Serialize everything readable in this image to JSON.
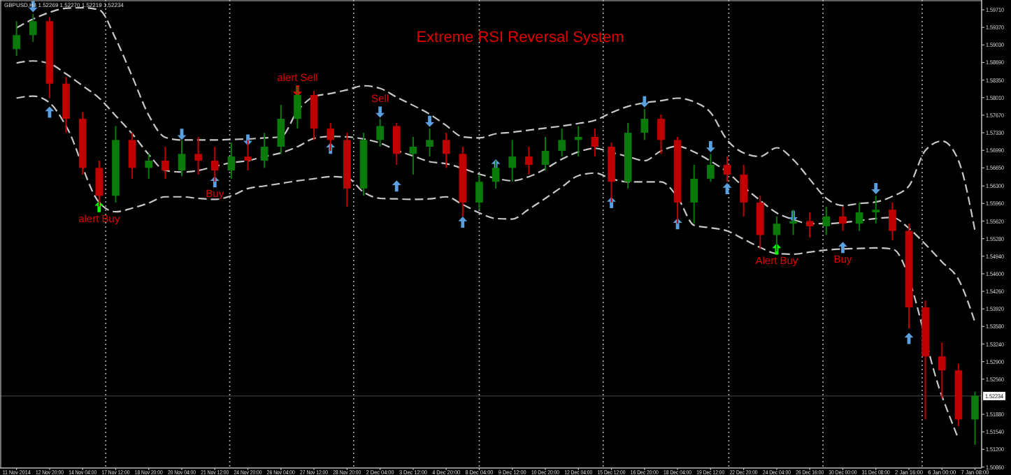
{
  "chart_data": {
    "type": "candlestick",
    "title": "Extreme RSI Reversal System",
    "subtitle": "GBPUSD,H4  1.52269 1.52270 1.52219 1.52234",
    "categories": [
      "11 Nov 2014",
      null,
      "12 Nov 20:00",
      null,
      "14 Nov 04:00",
      null,
      "17 Nov 12:00",
      null,
      "18 Nov 20:00",
      null,
      "20 Nov 04:00",
      null,
      "21 Nov 12:00",
      null,
      "24 Nov 20:00",
      null,
      "26 Nov 04:00",
      null,
      "27 Nov 12:00",
      null,
      "28 Nov 20:00",
      null,
      "2 Dec 04:00",
      null,
      "3 Dec 12:00",
      null,
      "4 Dec 20:00",
      null,
      "8 Dec 04:00",
      null,
      "9 Dec 12:00",
      null,
      "10 Dec 20:00",
      null,
      "12 Dec 04:00",
      null,
      "15 Dec 12:00",
      null,
      "16 Dec 20:00",
      null,
      "18 Dec 04:00",
      null,
      "19 Dec 12:00",
      null,
      "22 Dec 20:00",
      null,
      "24 Dec 04:00",
      null,
      "26 Dec 16:00",
      null,
      "30 Dec 00:00",
      null,
      "31 Dec 08:00",
      null,
      "2 Jan 16:00",
      null,
      "6 Jan 00:00",
      null,
      "7 Jan 08:00"
    ],
    "ohlc": [
      [
        1.5895,
        1.5949,
        1.5882,
        1.5922
      ],
      [
        1.5922,
        1.5963,
        1.5909,
        1.5949
      ],
      [
        1.5949,
        1.5957,
        1.58,
        1.5828
      ],
      [
        1.5828,
        1.5841,
        1.5733,
        1.576
      ],
      [
        1.576,
        1.5773,
        1.5652,
        1.5665
      ],
      [
        1.5665,
        1.5679,
        1.559,
        1.5611
      ],
      [
        1.5611,
        1.5746,
        1.5598,
        1.5719
      ],
      [
        1.5719,
        1.5733,
        1.5644,
        1.5665
      ],
      [
        1.5665,
        1.5692,
        1.5644,
        1.5679
      ],
      [
        1.5679,
        1.5706,
        1.5644,
        1.566
      ],
      [
        1.566,
        1.5719,
        1.5649,
        1.5692
      ],
      [
        1.5692,
        1.5725,
        1.5652,
        1.5679
      ],
      [
        1.5679,
        1.5706,
        1.5638,
        1.566
      ],
      [
        1.566,
        1.5714,
        1.5644,
        1.5687
      ],
      [
        1.5687,
        1.5719,
        1.566,
        1.5679
      ],
      [
        1.5679,
        1.5733,
        1.5665,
        1.5706
      ],
      [
        1.5706,
        1.5787,
        1.5692,
        1.576
      ],
      [
        1.576,
        1.5822,
        1.5741,
        1.5806
      ],
      [
        1.5806,
        1.5814,
        1.5719,
        1.5741
      ],
      [
        1.5741,
        1.5752,
        1.5698,
        1.5719
      ],
      [
        1.5719,
        1.5733,
        1.559,
        1.5625
      ],
      [
        1.5625,
        1.5733,
        1.5611,
        1.5719
      ],
      [
        1.5719,
        1.576,
        1.5706,
        1.5746
      ],
      [
        1.5746,
        1.5752,
        1.5671,
        1.5692
      ],
      [
        1.5692,
        1.5725,
        1.5652,
        1.5706
      ],
      [
        1.5706,
        1.5741,
        1.5687,
        1.5719
      ],
      [
        1.5719,
        1.5733,
        1.5665,
        1.5692
      ],
      [
        1.5692,
        1.5706,
        1.5571,
        1.5598
      ],
      [
        1.5598,
        1.5652,
        1.5584,
        1.5638
      ],
      [
        1.5638,
        1.5679,
        1.5625,
        1.5665
      ],
      [
        1.5665,
        1.5719,
        1.5638,
        1.5687
      ],
      [
        1.5687,
        1.5706,
        1.5652,
        1.5671
      ],
      [
        1.5671,
        1.5725,
        1.566,
        1.5698
      ],
      [
        1.5698,
        1.5741,
        1.5687,
        1.5719
      ],
      [
        1.5719,
        1.5746,
        1.5687,
        1.5725
      ],
      [
        1.5725,
        1.5741,
        1.5687,
        1.5706
      ],
      [
        1.5706,
        1.5714,
        1.5598,
        1.5638
      ],
      [
        1.5638,
        1.5752,
        1.5625,
        1.5733
      ],
      [
        1.5733,
        1.5779,
        1.5719,
        1.576
      ],
      [
        1.576,
        1.5768,
        1.5692,
        1.5719
      ],
      [
        1.5719,
        1.5725,
        1.5557,
        1.5598
      ],
      [
        1.5598,
        1.5671,
        1.5557,
        1.5644
      ],
      [
        1.5644,
        1.5692,
        1.5638,
        1.5671
      ],
      [
        1.5671,
        1.5687,
        1.5638,
        1.5652
      ],
      [
        1.5652,
        1.5671,
        1.5571,
        1.5598
      ],
      [
        1.5598,
        1.5611,
        1.5508,
        1.5535
      ],
      [
        1.5535,
        1.5571,
        1.5503,
        1.5557
      ],
      [
        1.5557,
        1.5584,
        1.5535,
        1.5562
      ],
      [
        1.5562,
        1.5579,
        1.553,
        1.5552
      ],
      [
        1.5552,
        1.559,
        1.5535,
        1.5571
      ],
      [
        1.5571,
        1.559,
        1.5543,
        1.5557
      ],
      [
        1.5557,
        1.5598,
        1.5543,
        1.5579
      ],
      [
        1.5579,
        1.5611,
        1.5557,
        1.5584
      ],
      [
        1.5584,
        1.5598,
        1.5525,
        1.5543
      ],
      [
        1.5543,
        1.5557,
        1.5354,
        1.5395
      ],
      [
        1.5395,
        1.5408,
        1.5178,
        1.53
      ],
      [
        1.53,
        1.5327,
        1.5219,
        1.5273
      ],
      [
        1.5273,
        1.5286,
        1.5165,
        1.5178
      ],
      [
        1.5178,
        1.5232,
        1.5129,
        1.5224
      ]
    ],
    "series": [
      {
        "type": "line",
        "color": "#c8c8c8",
        "line_style": "dashed",
        "values": [
          1.5936,
          1.5953,
          1.5966,
          1.5974,
          1.5975,
          1.5971,
          1.5915,
          1.5842,
          1.5767,
          1.5724,
          1.5719,
          1.5719,
          1.5719,
          1.572,
          1.5721,
          1.5723,
          1.5725,
          1.5775,
          1.5803,
          1.5809,
          1.5816,
          1.5824,
          1.5819,
          1.5802,
          1.5786,
          1.5769,
          1.5747,
          1.5725,
          1.5723,
          1.5731,
          1.5734,
          1.5738,
          1.5742,
          1.5746,
          1.5751,
          1.5757,
          1.5772,
          1.5784,
          1.5791,
          1.5795,
          1.58,
          1.5793,
          1.5772,
          1.5719,
          1.5694,
          1.5687,
          1.5704,
          1.5681,
          1.5643,
          1.5606,
          1.5592,
          1.5596,
          1.5599,
          1.561,
          1.563,
          1.5699,
          1.5717,
          1.5679,
          1.5543
        ]
      },
      {
        "type": "line",
        "color": "#c8c8c8",
        "line_style": "dashed",
        "values": [
          1.5868,
          1.5872,
          1.5867,
          1.5847,
          1.5824,
          1.58,
          1.5766,
          1.5731,
          1.5691,
          1.566,
          1.5657,
          1.566,
          1.5668,
          1.5675,
          1.5679,
          1.5687,
          1.5694,
          1.5706,
          1.5722,
          1.5726,
          1.5725,
          1.5721,
          1.5713,
          1.5699,
          1.5688,
          1.5677,
          1.5673,
          1.5664,
          1.5653,
          1.5645,
          1.564,
          1.5648,
          1.5663,
          1.5682,
          1.5696,
          1.5703,
          1.5695,
          1.5687,
          1.5679,
          1.5698,
          1.5707,
          1.5696,
          1.5678,
          1.5657,
          1.5628,
          1.5602,
          1.5578,
          1.5565,
          1.5557,
          1.5557,
          1.5559,
          1.5563,
          1.5567,
          1.5569,
          1.5548,
          1.5517,
          1.5483,
          1.5449,
          1.5366
        ]
      },
      {
        "type": "line",
        "color": "#c8c8c8",
        "line_style": "dashed",
        "values": [
          1.58,
          1.5804,
          1.5791,
          1.5746,
          null,
          1.5598,
          1.558,
          1.5587,
          1.5597,
          1.5609,
          1.5609,
          1.5606,
          1.5604,
          1.5611,
          1.5625,
          1.563,
          1.5635,
          1.564,
          1.5644,
          1.5648,
          1.5646,
          1.5618,
          1.5606,
          1.5605,
          1.5604,
          1.5605,
          1.5609,
          1.5594,
          1.5578,
          1.5567,
          1.5566,
          1.5585,
          1.5606,
          1.5628,
          1.565,
          1.5655,
          1.5644,
          1.5638,
          1.5638,
          1.5638,
          1.5608,
          1.5554,
          1.5549,
          1.5543,
          1.5527,
          1.5511,
          1.5499,
          1.5498,
          1.5502,
          1.5506,
          1.5508,
          1.5509,
          1.551,
          1.5508,
          null,
          null,
          1.5223,
          1.514,
          null
        ]
      },
      {
        "type": "scatter",
        "marker": "triangle",
        "color": "#5aa0e0",
        "values": [
          null,
          null,
          1.5773,
          null,
          null,
          null,
          null,
          null,
          null,
          null,
          null,
          null,
          1.5638,
          null,
          null,
          null,
          null,
          null,
          null,
          1.5703,
          null,
          null,
          null,
          1.563,
          null,
          null,
          null,
          1.556,
          null,
          1.5671,
          null,
          null,
          null,
          null,
          null,
          null,
          1.5598,
          null,
          null,
          null,
          1.5557,
          null,
          null,
          1.5625,
          null,
          null,
          null,
          null,
          null,
          null,
          1.5511,
          null,
          null,
          null,
          1.5335,
          null,
          null,
          null,
          null
        ],
        "value_labels": [
          null,
          null,
          null,
          null,
          null,
          null,
          null,
          null,
          null,
          null,
          null,
          null,
          "Buy",
          null,
          null,
          null,
          null,
          null,
          null,
          null,
          null,
          null,
          null,
          null,
          null,
          null,
          null,
          null,
          null,
          null,
          null,
          null,
          null,
          null,
          null,
          null,
          null,
          null,
          null,
          null,
          null,
          null,
          null,
          null,
          null,
          null,
          null,
          null,
          null,
          null,
          "Buy",
          null,
          null,
          null,
          null,
          null,
          null,
          null,
          null
        ]
      },
      {
        "type": "scatter",
        "marker": "triangle-down",
        "color": "#5aa0e0",
        "values": [
          null,
          1.5977,
          null,
          null,
          null,
          null,
          null,
          null,
          null,
          null,
          1.573,
          null,
          null,
          null,
          1.5719,
          null,
          null,
          null,
          null,
          null,
          null,
          null,
          1.5773,
          null,
          null,
          1.5755,
          null,
          null,
          null,
          null,
          null,
          null,
          null,
          null,
          null,
          null,
          null,
          null,
          1.5793,
          null,
          null,
          null,
          1.5706,
          null,
          null,
          null,
          null,
          1.5571,
          null,
          null,
          null,
          null,
          1.5625,
          null,
          null,
          null,
          null,
          null,
          null
        ],
        "value_labels": [
          null,
          null,
          null,
          null,
          null,
          null,
          null,
          null,
          null,
          null,
          null,
          null,
          null,
          null,
          null,
          null,
          null,
          null,
          null,
          null,
          null,
          null,
          "Sell",
          null,
          null,
          null,
          null,
          null,
          null,
          null,
          null,
          null,
          null,
          null,
          null,
          null,
          null,
          null,
          null,
          null,
          null,
          null,
          null,
          null,
          null,
          null,
          null,
          null,
          null,
          null,
          null,
          null,
          null,
          null,
          null,
          null,
          null,
          null,
          null
        ]
      },
      {
        "type": "scatter",
        "marker": "triangle",
        "color": "#00ff00",
        "values": [
          null,
          null,
          null,
          null,
          null,
          1.559,
          null,
          null,
          null,
          null,
          null,
          null,
          null,
          null,
          null,
          null,
          null,
          null,
          null,
          null,
          null,
          null,
          null,
          null,
          null,
          null,
          null,
          null,
          null,
          null,
          null,
          null,
          null,
          null,
          null,
          null,
          null,
          null,
          null,
          null,
          null,
          null,
          null,
          null,
          null,
          null,
          1.5508,
          null,
          null,
          null,
          null,
          null,
          null,
          null,
          null,
          null,
          null,
          null,
          null
        ],
        "value_labels": [
          null,
          null,
          null,
          null,
          null,
          "alert Buy",
          null,
          null,
          null,
          null,
          null,
          null,
          null,
          null,
          null,
          null,
          null,
          null,
          null,
          null,
          null,
          null,
          null,
          null,
          null,
          null,
          null,
          null,
          null,
          null,
          null,
          null,
          null,
          null,
          null,
          null,
          null,
          null,
          null,
          null,
          null,
          null,
          null,
          null,
          null,
          null,
          "Alert Buy",
          null,
          null,
          null,
          null,
          null,
          null,
          null,
          null,
          null,
          null,
          null,
          null
        ]
      },
      {
        "type": "scatter",
        "marker": "triangle-down",
        "color": "#ff0000",
        "values": [
          null,
          null,
          null,
          null,
          null,
          null,
          null,
          null,
          null,
          null,
          null,
          null,
          null,
          null,
          null,
          null,
          null,
          1.5814,
          null,
          null,
          null,
          null,
          null,
          null,
          null,
          null,
          null,
          null,
          null,
          null,
          null,
          null,
          null,
          null,
          null,
          null,
          null,
          null,
          null,
          null,
          null,
          null,
          null,
          null,
          null,
          null,
          null,
          null,
          null,
          null,
          null,
          null,
          null,
          null,
          null,
          null,
          null,
          null,
          null
        ],
        "value_labels": [
          null,
          null,
          null,
          null,
          null,
          null,
          null,
          null,
          null,
          null,
          null,
          null,
          null,
          null,
          null,
          null,
          null,
          "alert Sell",
          null,
          null,
          null,
          null,
          null,
          null,
          null,
          null,
          null,
          null,
          null,
          null,
          null,
          null,
          null,
          null,
          null,
          null,
          null,
          null,
          null,
          null,
          null,
          null,
          null,
          null,
          null,
          null,
          null,
          null,
          null,
          null,
          null,
          null,
          null,
          null,
          null,
          null,
          null,
          null,
          null
        ]
      }
    ],
    "ref_lines": [
      {
        "axis": "y",
        "value": 1.52234,
        "label": "1.52234",
        "color": "#3a3a3a"
      }
    ],
    "ylim": [
      1.5084,
      1.599
    ],
    "yticks": [
      {
        "value": 1.5086,
        "label": "1.50860"
      },
      {
        "value": 1.512,
        "label": "1.51200"
      },
      {
        "value": 1.5154,
        "label": "1.51540"
      },
      {
        "value": 1.5188,
        "label": "1.51880"
      },
      {
        "value": 1.5256,
        "label": "1.52560"
      },
      {
        "value": 1.529,
        "label": "1.52900"
      },
      {
        "value": 1.5324,
        "label": "1.53240"
      },
      {
        "value": 1.5358,
        "label": "1.53580"
      },
      {
        "value": 1.5392,
        "label": "1.53920"
      },
      {
        "value": 1.5426,
        "label": "1.54260"
      },
      {
        "value": 1.546,
        "label": "1.54600"
      },
      {
        "value": 1.5494,
        "label": "1.54940"
      },
      {
        "value": 1.5528,
        "label": "1.55280"
      },
      {
        "value": 1.5562,
        "label": "1.55620"
      },
      {
        "value": 1.5596,
        "label": "1.55960"
      },
      {
        "value": 1.563,
        "label": "1.56300"
      },
      {
        "value": 1.5665,
        "label": "1.56650"
      },
      {
        "value": 1.5699,
        "label": "1.56990"
      },
      {
        "value": 1.5733,
        "label": "1.57330"
      },
      {
        "value": 1.5767,
        "label": "1.57670"
      },
      {
        "value": 1.5801,
        "label": "1.58010"
      },
      {
        "value": 1.5835,
        "label": "1.58350"
      },
      {
        "value": 1.5869,
        "label": "1.58690"
      },
      {
        "value": 1.5903,
        "label": "1.59030"
      },
      {
        "value": 1.5937,
        "label": "1.59370"
      },
      {
        "value": 1.5971,
        "label": "1.59710"
      }
    ]
  }
}
